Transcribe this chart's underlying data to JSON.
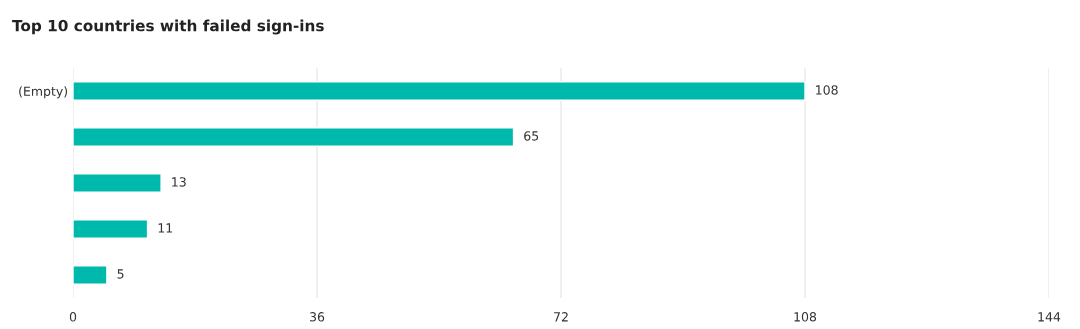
{
  "chart_data": {
    "type": "bar",
    "title": "Top 10 countries with failed sign-ins",
    "orientation": "horizontal",
    "categories": [
      "(Empty)",
      null,
      null,
      null,
      null
    ],
    "values": [
      108,
      65,
      13,
      11,
      5
    ],
    "color": "#00b9ad",
    "xlim": [
      0,
      144
    ],
    "xticks": [
      0,
      36,
      72,
      108,
      144
    ],
    "grid": "x",
    "data_labels": true
  }
}
